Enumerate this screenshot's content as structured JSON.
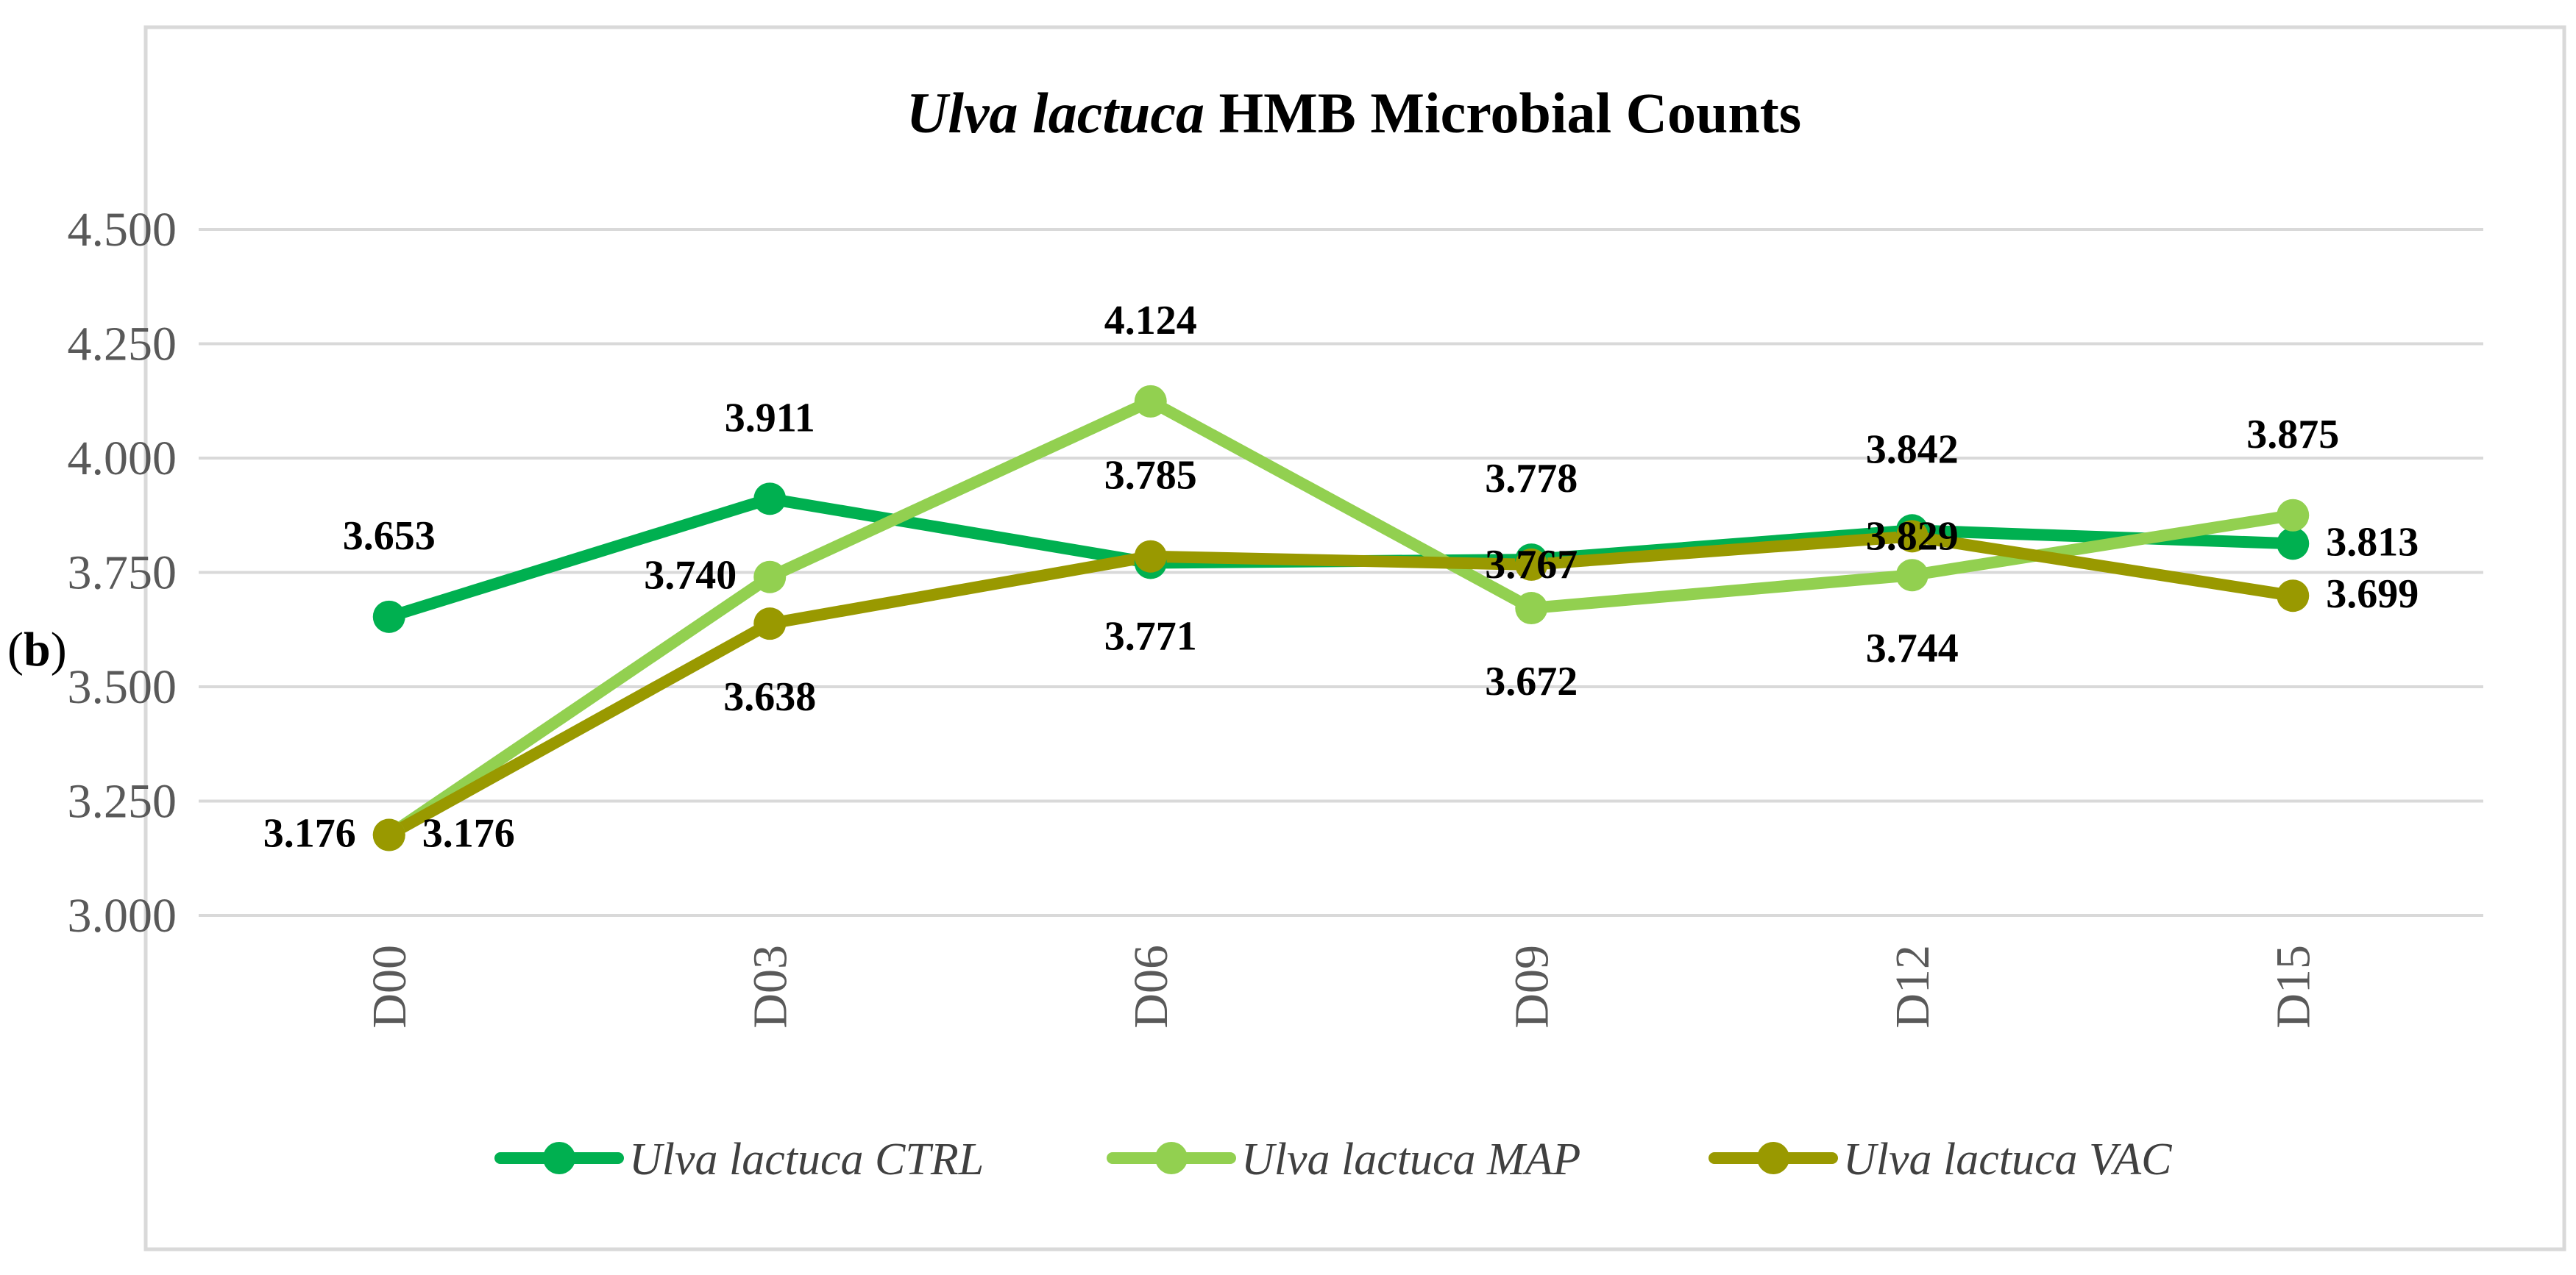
{
  "panel_label": {
    "open": "(",
    "letter": "b",
    "close": ")"
  },
  "chart_data": {
    "type": "line",
    "title": "Ulva lactuca HMB Microbial Counts",
    "title_parts": {
      "italic": "Ulva lactuca",
      "rest": " HMB Microbial Counts"
    },
    "categories": [
      "D00",
      "D03",
      "D06",
      "D09",
      "D12",
      "D15"
    ],
    "ylim": [
      3.0,
      4.5
    ],
    "yticks": [
      3.0,
      3.25,
      3.5,
      3.75,
      4.0,
      4.25,
      4.5
    ],
    "ytick_labels": [
      "3.000",
      "3.250",
      "3.500",
      "3.750",
      "4.000",
      "4.250",
      "4.500"
    ],
    "grid": true,
    "legend_position": "bottom",
    "xlabel": "",
    "ylabel": "",
    "series": [
      {
        "name": "Ulva lactuca CTRL",
        "color": "#00B050",
        "values": [
          3.653,
          3.911,
          3.771,
          3.778,
          3.842,
          3.813
        ],
        "labels": [
          "3.653",
          "3.911",
          "3.771",
          "3.778",
          "3.842",
          "3.813"
        ],
        "label_positions": [
          "above",
          "above",
          "below",
          "above",
          "above",
          "right"
        ]
      },
      {
        "name": "Ulva lactuca MAP",
        "color": "#92D050",
        "values": [
          3.176,
          3.74,
          4.124,
          3.672,
          3.744,
          3.875
        ],
        "labels": [
          "3.176",
          "3.740",
          "4.124",
          "3.672",
          "3.744",
          "3.875"
        ],
        "label_positions": [
          "left",
          "left",
          "above",
          "below",
          "below",
          "above"
        ]
      },
      {
        "name": "Ulva lactuca VAC",
        "color": "#999900",
        "values": [
          3.176,
          3.638,
          3.785,
          3.767,
          3.829,
          3.699
        ],
        "labels": [
          "3.176",
          "3.638",
          "3.785",
          "3.767",
          "3.829",
          "3.699"
        ],
        "label_positions": [
          "right",
          "below",
          "above",
          "center",
          "center",
          "right"
        ]
      }
    ]
  }
}
